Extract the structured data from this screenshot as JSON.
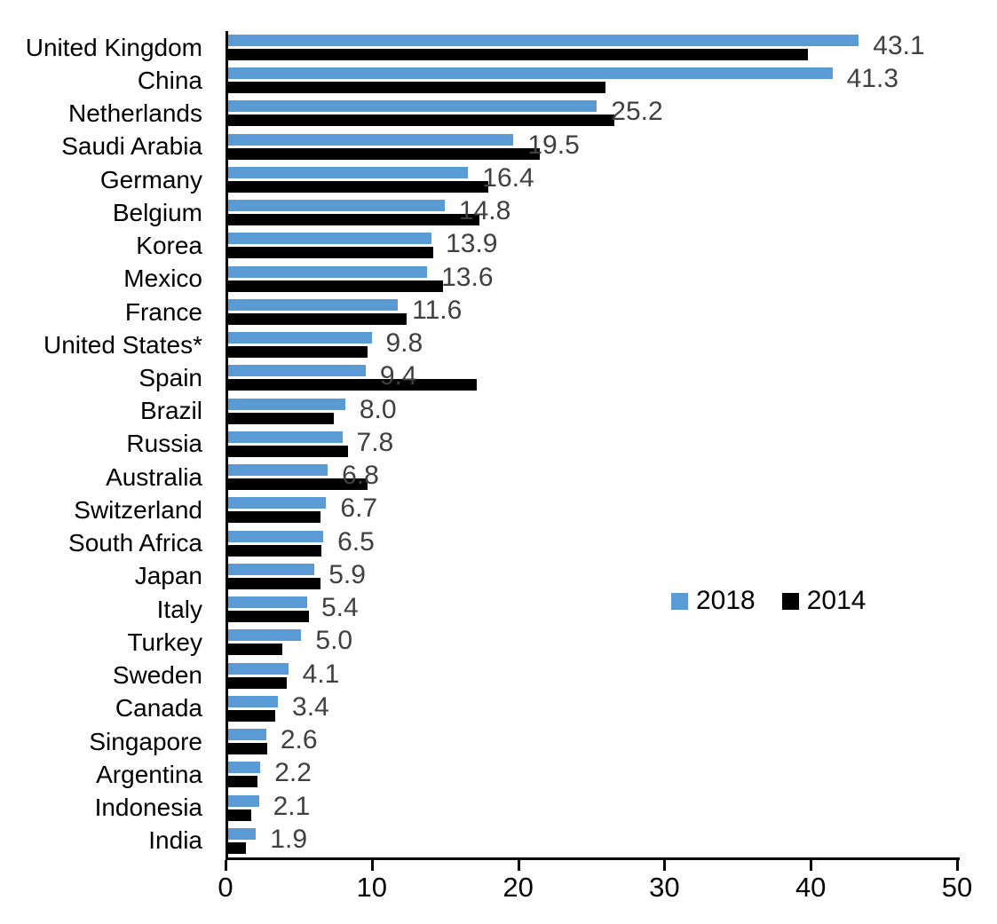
{
  "chart_data": {
    "type": "bar",
    "orientation": "horizontal",
    "title": "",
    "xlabel": "",
    "ylabel": "",
    "xlim": [
      0,
      50
    ],
    "x_ticks": [
      0,
      10,
      20,
      30,
      40,
      50
    ],
    "grid": false,
    "legend_position": "middle-right",
    "categories": [
      "United Kingdom",
      "China",
      "Netherlands",
      "Saudi Arabia",
      "Germany",
      "Belgium",
      "Korea",
      "Mexico",
      "France",
      "United States*",
      "Spain",
      "Brazil",
      "Russia",
      "Australia",
      "Switzerland",
      "South Africa",
      "Japan",
      "Italy",
      "Turkey",
      "Sweden",
      "Canada",
      "Singapore",
      "Argentina",
      "Indonesia",
      "India"
    ],
    "series": [
      {
        "name": "2018",
        "color": "#5B9BD5",
        "values": [
          43.1,
          41.3,
          25.2,
          19.5,
          16.4,
          14.8,
          13.9,
          13.6,
          11.6,
          9.8,
          9.4,
          8.0,
          7.8,
          6.8,
          6.7,
          6.5,
          5.9,
          5.4,
          5.0,
          4.1,
          3.4,
          2.6,
          2.2,
          2.1,
          1.9
        ]
      },
      {
        "name": "2014",
        "color": "#000000",
        "values": [
          39.6,
          25.8,
          26.4,
          21.3,
          17.8,
          17.2,
          14.0,
          14.7,
          12.2,
          9.5,
          17.0,
          7.2,
          8.2,
          9.5,
          6.3,
          6.4,
          6.3,
          5.5,
          3.7,
          4.0,
          3.2,
          2.7,
          2.0,
          1.6,
          1.2
        ]
      }
    ],
    "data_labels": [
      "43.1",
      "41.3",
      "25.2",
      "19.5",
      "16.4",
      "14.8",
      "13.9",
      "13.6",
      "11.6",
      "9.8",
      "9.4",
      "8.0",
      "7.8",
      "6.8",
      "6.7",
      "6.5",
      "5.9",
      "5.4",
      "5.0",
      "4.1",
      "3.4",
      "2.6",
      "2.2",
      "2.1",
      "1.9"
    ],
    "data_label_series": "2018",
    "value_label_color": "#404040",
    "legend": {
      "items": [
        {
          "label": "2018",
          "color": "#5B9BD5"
        },
        {
          "label": "2014",
          "color": "#000000"
        }
      ]
    }
  }
}
